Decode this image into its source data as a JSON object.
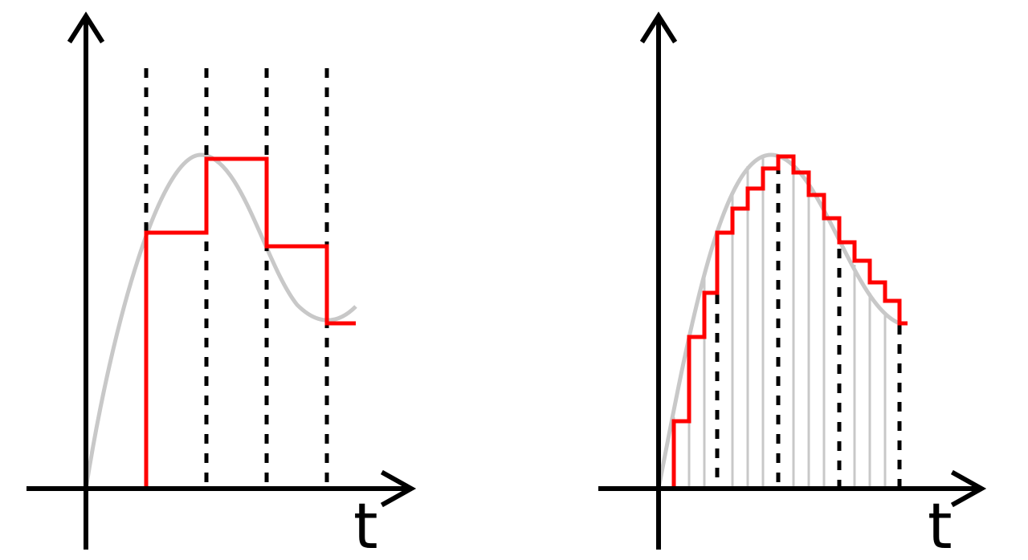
{
  "panels": [
    {
      "axis_label": "t"
    },
    {
      "axis_label": "t"
    }
  ]
}
